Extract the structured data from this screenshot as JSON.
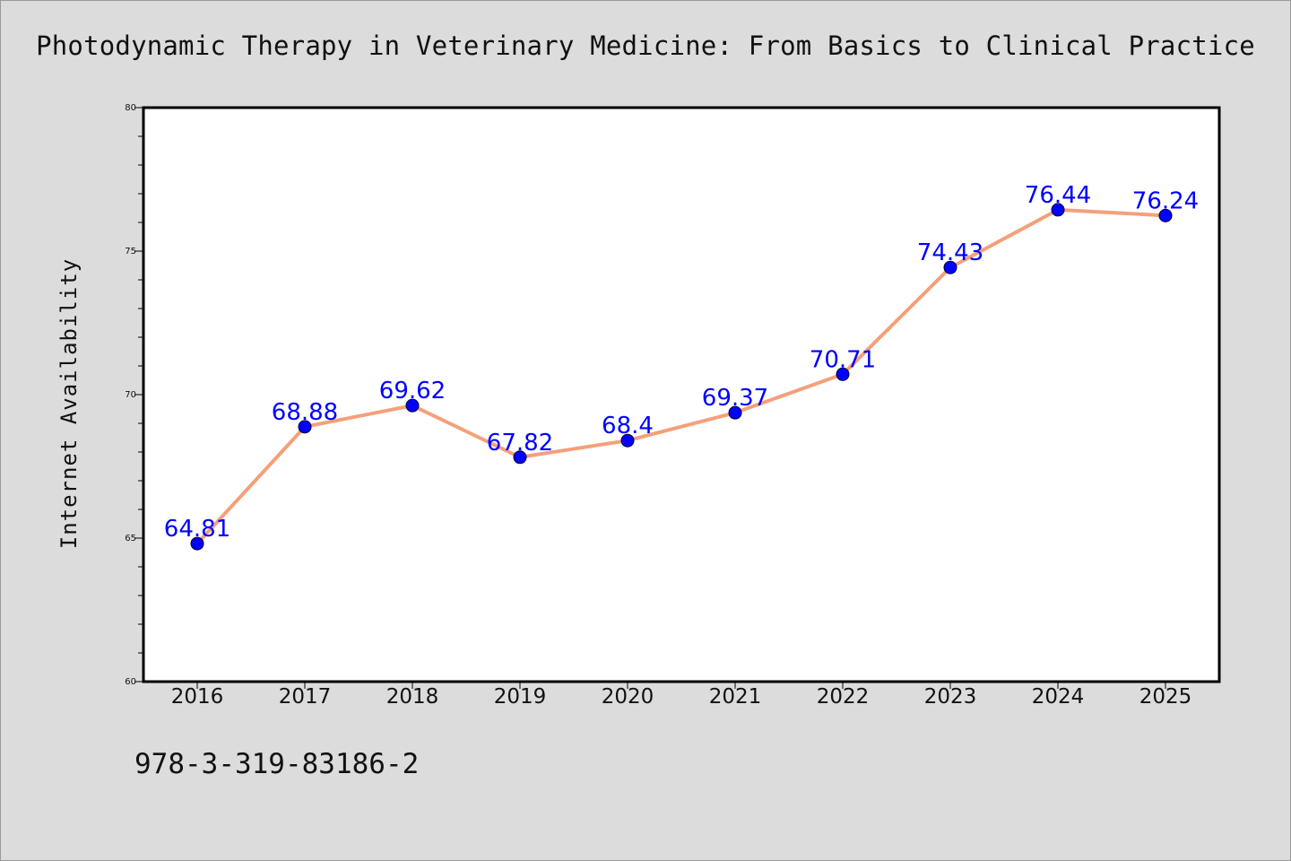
{
  "title": "Photodynamic Therapy in Veterinary Medicine: From Basics to Clinical Practice",
  "footer_isbn": "978-3-319-83186-2",
  "colors": {
    "background": "#dcdcdc",
    "plot_background": "#ffffff",
    "line": "#f4a07a",
    "marker": "#0000ff",
    "data_label": "#0000ff"
  },
  "chart_data": {
    "type": "line",
    "title": "Photodynamic Therapy in Veterinary Medicine: From Basics to Clinical Practice",
    "xlabel": "",
    "ylabel": "Internet Availability",
    "categories": [
      "2016",
      "2017",
      "2018",
      "2019",
      "2020",
      "2021",
      "2022",
      "2023",
      "2024",
      "2025"
    ],
    "series": [
      {
        "values": [
          64.81,
          68.88,
          69.62,
          67.82,
          68.4,
          69.37,
          70.71,
          74.43,
          76.44,
          76.24
        ],
        "labels": [
          "64.81",
          "68.88",
          "69.62",
          "67.82",
          "68.4",
          "69.37",
          "70.71",
          "74.43",
          "76.44",
          "76.24"
        ]
      }
    ],
    "ylim": [
      60,
      80
    ],
    "yticks": [
      60,
      65,
      70,
      75,
      80
    ],
    "y_minor_step": 1,
    "grid": false,
    "legend": "none",
    "marker": "circle"
  }
}
